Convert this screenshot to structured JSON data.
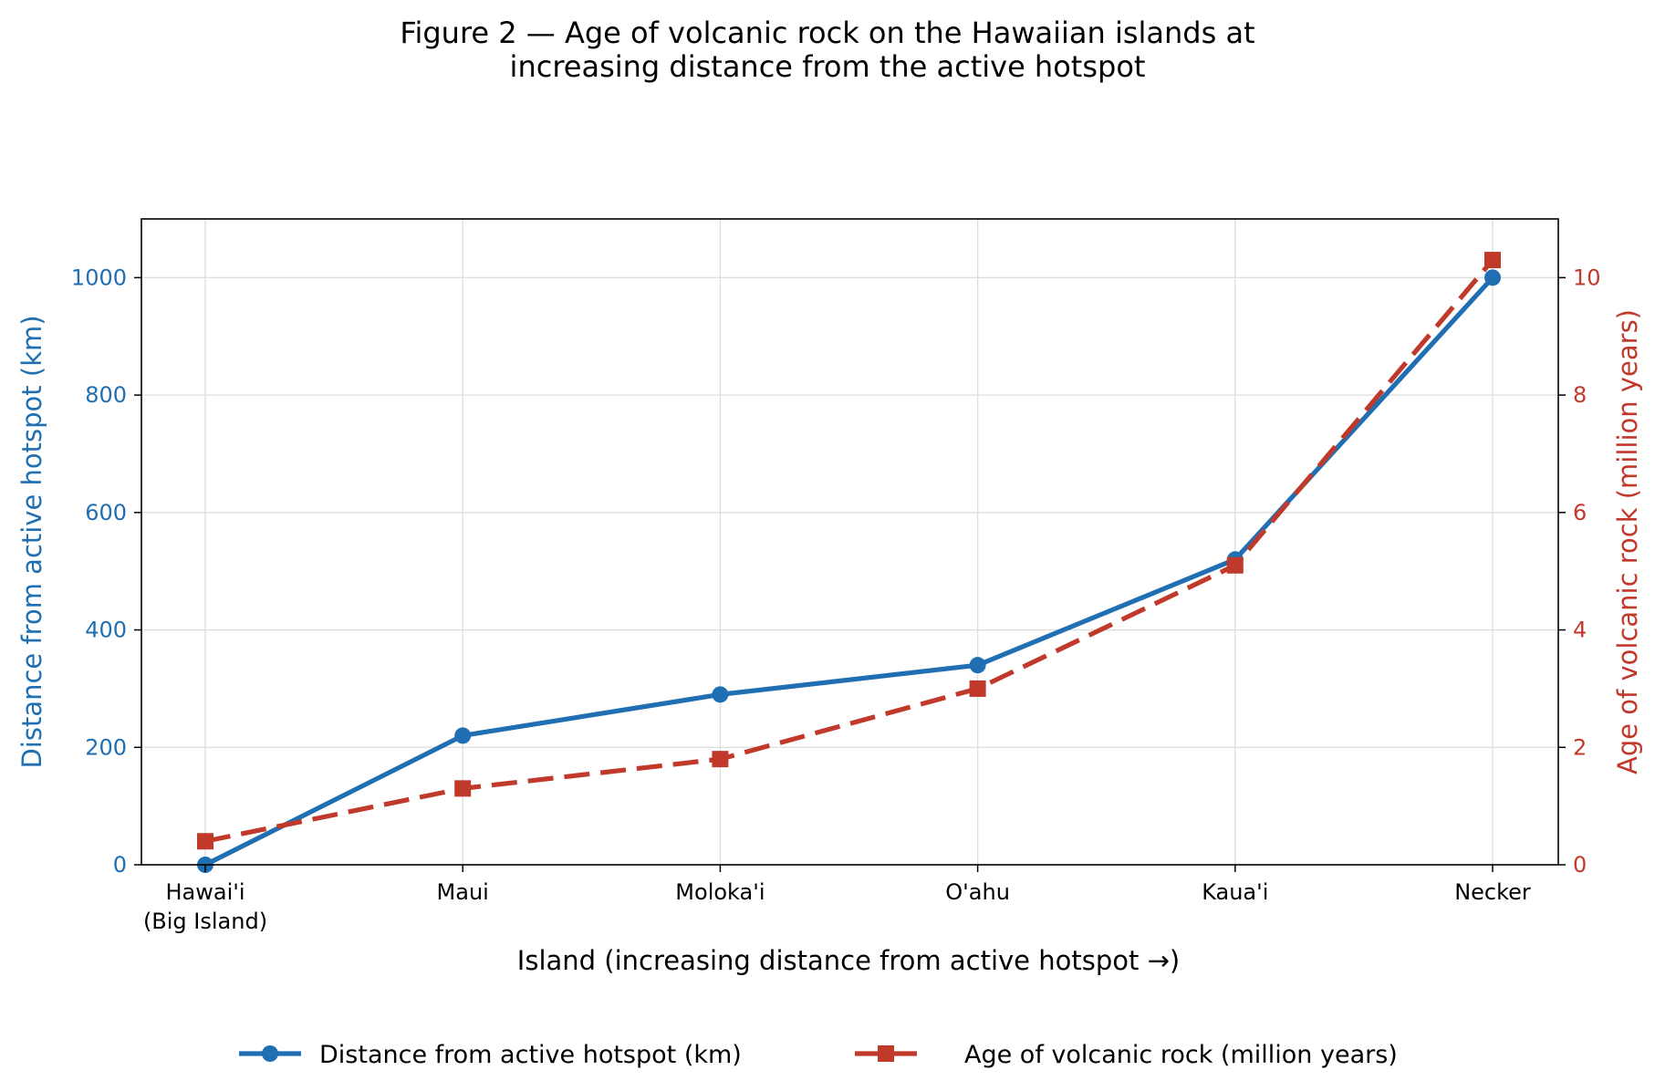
{
  "chart_data": {
    "type": "line",
    "title": [
      "Figure 2 — Age of volcanic rock on the Hawaiian islands at",
      "increasing distance from the active hotspot"
    ],
    "xlabel": "Island (increasing distance from active hotspot →)",
    "categories": [
      [
        "Hawai'i",
        "(Big Island)"
      ],
      [
        "Maui"
      ],
      [
        "Moloka'i"
      ],
      [
        "O'ahu"
      ],
      [
        "Kaua'i"
      ],
      [
        "Necker"
      ]
    ],
    "left_axis": {
      "label": "Distance from active hotspot (km)",
      "ylim": [
        0,
        1100
      ],
      "ticks": [
        0,
        200,
        400,
        600,
        800,
        1000
      ],
      "color": "#1f6fb2"
    },
    "right_axis": {
      "label": "Age of volcanic rock (million years)",
      "ylim": [
        0,
        11
      ],
      "ticks": [
        0,
        2,
        4,
        6,
        8,
        10
      ],
      "color": "#c0392b"
    },
    "series": [
      {
        "name": "Distance from active hotspot (km)",
        "axis": "left",
        "values": [
          0,
          220,
          290,
          340,
          520,
          1000
        ],
        "color": "#1f6fb2",
        "line": "solid",
        "marker": "circle"
      },
      {
        "name": "Age of volcanic rock (million years)",
        "axis": "right",
        "values": [
          0.4,
          1.3,
          1.8,
          3.0,
          5.1,
          10.3
        ],
        "color": "#c0392b",
        "line": "dashed",
        "marker": "square"
      }
    ],
    "grid": true,
    "legend_position": "bottom-center"
  }
}
